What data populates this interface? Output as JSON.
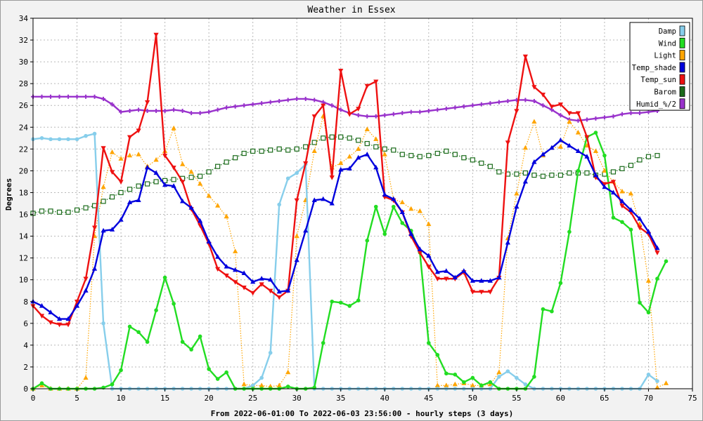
{
  "chart_data": {
    "type": "line",
    "title": "Weather in Essex",
    "xlabel": "From 2022-06-01:00 To 2022-06-03 23:56:00 - hourly steps (3 days)",
    "ylabel": "Degrees",
    "xlim": [
      0,
      75
    ],
    "ylim": [
      0,
      34
    ],
    "xticks": [
      0,
      5,
      10,
      15,
      20,
      25,
      30,
      35,
      40,
      45,
      50,
      55,
      60,
      65,
      70,
      75
    ],
    "yticks": [
      0,
      2,
      4,
      6,
      8,
      10,
      12,
      14,
      16,
      18,
      20,
      22,
      24,
      26,
      28,
      30,
      32,
      34
    ],
    "grid": true,
    "legend_position": "top-right",
    "series": [
      {
        "name": "Damp",
        "color": "#87ceeb",
        "marker": "circle",
        "style": "solid",
        "values": [
          22.9,
          23.0,
          22.9,
          22.9,
          22.9,
          22.9,
          23.2,
          23.4,
          6.0,
          0,
          0,
          0,
          0,
          0,
          0,
          0,
          0,
          0,
          0,
          0,
          0,
          0,
          0,
          0,
          0,
          0.3,
          1.0,
          3.3,
          16.9,
          19.3,
          19.8,
          20.6,
          0,
          0,
          0,
          0,
          0,
          0,
          0,
          0,
          0,
          0,
          0,
          0,
          0,
          0,
          0,
          0,
          0,
          0,
          0,
          0,
          0,
          1.1,
          1.6,
          1.0,
          0.4,
          0,
          0,
          0,
          0,
          0,
          0,
          0,
          0,
          0,
          0,
          0,
          0,
          0,
          1.3,
          0.7
        ]
      },
      {
        "name": "Wind",
        "color": "#22dd22",
        "marker": "circle",
        "style": "solid",
        "values": [
          0,
          0.5,
          0,
          0,
          0,
          0,
          0,
          0,
          0.1,
          0.4,
          1.7,
          5.7,
          5.2,
          4.3,
          7.2,
          10.2,
          7.8,
          4.3,
          3.6,
          4.8,
          1.8,
          0.9,
          1.5,
          0,
          0,
          0,
          0,
          0,
          0,
          0.2,
          0,
          0,
          0.1,
          4.2,
          8.0,
          7.9,
          7.6,
          8.1,
          13.6,
          16.7,
          14.2,
          16.7,
          15.2,
          14.5,
          12.5,
          4.2,
          3.1,
          1.4,
          1.3,
          0.6,
          1.0,
          0.3,
          0.6,
          0,
          0,
          0,
          0,
          1.1,
          7.3,
          7.1,
          9.7,
          14.4,
          20.0,
          23.1,
          23.5,
          21.4,
          15.7,
          15.3,
          14.6,
          7.9,
          7.0,
          10.1,
          11.7
        ]
      },
      {
        "name": "Light",
        "color": "#ffa500",
        "marker": "triangle-up",
        "style": "dotted",
        "values": [
          0,
          0.3,
          0,
          0,
          0,
          0,
          1.0,
          14.0,
          18.5,
          21.7,
          21.1,
          21.4,
          21.5,
          20.4,
          21.0,
          21.8,
          23.9,
          20.6,
          19.9,
          18.8,
          17.7,
          16.8,
          15.8,
          12.6,
          0.4,
          0.3,
          0.3,
          0.2,
          0.3,
          1.5,
          14.0,
          17.3,
          21.8,
          25.0,
          20.3,
          20.7,
          21.3,
          22.0,
          23.8,
          22.9,
          21.5,
          17.4,
          17.1,
          16.5,
          16.3,
          15.1,
          0.3,
          0.3,
          0.4,
          0.5,
          0.3,
          0.3,
          0.4,
          1.5,
          13.8,
          17.9,
          22.1,
          24.5,
          21.4,
          22.1,
          22.2,
          24.5,
          23.5,
          22.3,
          21.8,
          20.0,
          19.0,
          18.1,
          17.9,
          15.1,
          9.9,
          0.1,
          0.5
        ]
      },
      {
        "name": "Temp_shade",
        "color": "#0000dd",
        "marker": "triangle-up",
        "style": "solid",
        "values": [
          8.0,
          7.6,
          7.0,
          6.4,
          6.4,
          7.6,
          9.0,
          11.0,
          14.5,
          14.6,
          15.5,
          17.1,
          17.3,
          20.3,
          19.8,
          18.7,
          18.6,
          17.2,
          16.6,
          15.4,
          13.5,
          12.1,
          11.2,
          10.9,
          10.6,
          9.8,
          10.1,
          10.0,
          8.9,
          9.0,
          11.8,
          14.5,
          17.3,
          17.4,
          17.0,
          20.1,
          20.2,
          21.2,
          21.5,
          20.3,
          17.8,
          17.4,
          16.2,
          14.2,
          12.8,
          12.2,
          10.7,
          10.8,
          10.2,
          10.8,
          9.9,
          9.9,
          9.9,
          10.2,
          13.4,
          16.7,
          19.0,
          20.8,
          21.5,
          22.1,
          22.8,
          22.3,
          21.8,
          21.3,
          19.6,
          18.5,
          18.0,
          17.2,
          16.4,
          15.6,
          14.4,
          12.9
        ]
      },
      {
        "name": "Temp_sun",
        "color": "#ee1111",
        "marker": "triangle-down",
        "style": "solid",
        "values": [
          7.6,
          6.7,
          6.1,
          5.9,
          5.9,
          8.0,
          10.1,
          14.8,
          22.1,
          19.9,
          19.0,
          23.1,
          23.7,
          26.3,
          32.5,
          21.4,
          20.3,
          19.0,
          16.5,
          15.0,
          13.3,
          11.0,
          10.4,
          9.8,
          9.3,
          8.8,
          9.6,
          9.0,
          8.4,
          9.0,
          17.3,
          20.7,
          25.0,
          26.0,
          19.4,
          29.2,
          25.2,
          25.7,
          27.8,
          28.2,
          17.6,
          17.3,
          16.2,
          14.0,
          12.5,
          11.2,
          10.1,
          10.1,
          10.1,
          10.7,
          8.9,
          8.9,
          8.9,
          10.2,
          22.6,
          25.5,
          30.5,
          27.7,
          27.0,
          25.9,
          26.1,
          25.3,
          25.3,
          23.1,
          19.4,
          18.8,
          19.0,
          16.8,
          16.2,
          14.8,
          14.2,
          12.5
        ]
      },
      {
        "name": "Barom",
        "color": "#1a6b1a",
        "marker": "square",
        "style": "dotted",
        "values": [
          16.1,
          16.3,
          16.3,
          16.2,
          16.2,
          16.4,
          16.6,
          16.8,
          17.2,
          17.6,
          18.0,
          18.3,
          18.6,
          18.8,
          19.0,
          19.1,
          19.2,
          19.3,
          19.4,
          19.5,
          19.9,
          20.4,
          20.8,
          21.2,
          21.6,
          21.8,
          21.8,
          21.9,
          22.0,
          21.9,
          22.0,
          22.2,
          22.6,
          23.0,
          23.1,
          23.1,
          23.0,
          22.8,
          22.5,
          22.2,
          22.0,
          21.9,
          21.5,
          21.4,
          21.3,
          21.4,
          21.6,
          21.8,
          21.5,
          21.2,
          21.0,
          20.7,
          20.4,
          19.9,
          19.7,
          19.7,
          19.8,
          19.6,
          19.5,
          19.6,
          19.6,
          19.8,
          19.8,
          19.8,
          19.6,
          19.7,
          19.9,
          20.2,
          20.5,
          21.0,
          21.3,
          21.4
        ]
      },
      {
        "name": "Humid_%/2",
        "color": "#9932cc",
        "marker": "cross",
        "style": "solid",
        "values": [
          26.8,
          26.8,
          26.8,
          26.8,
          26.8,
          26.8,
          26.8,
          26.8,
          26.6,
          26.1,
          25.4,
          25.5,
          25.6,
          25.5,
          25.5,
          25.5,
          25.6,
          25.5,
          25.3,
          25.3,
          25.4,
          25.6,
          25.8,
          25.9,
          26.0,
          26.1,
          26.2,
          26.3,
          26.4,
          26.5,
          26.6,
          26.6,
          26.5,
          26.3,
          26.0,
          25.6,
          25.3,
          25.1,
          25.0,
          25.0,
          25.1,
          25.2,
          25.3,
          25.4,
          25.4,
          25.5,
          25.6,
          25.7,
          25.8,
          25.9,
          26.0,
          26.1,
          26.2,
          26.3,
          26.4,
          26.5,
          26.5,
          26.4,
          26.0,
          25.6,
          25.1,
          24.7,
          24.6,
          24.7,
          24.8,
          24.9,
          25.0,
          25.2,
          25.3,
          25.3,
          25.4,
          25.5
        ]
      }
    ]
  }
}
